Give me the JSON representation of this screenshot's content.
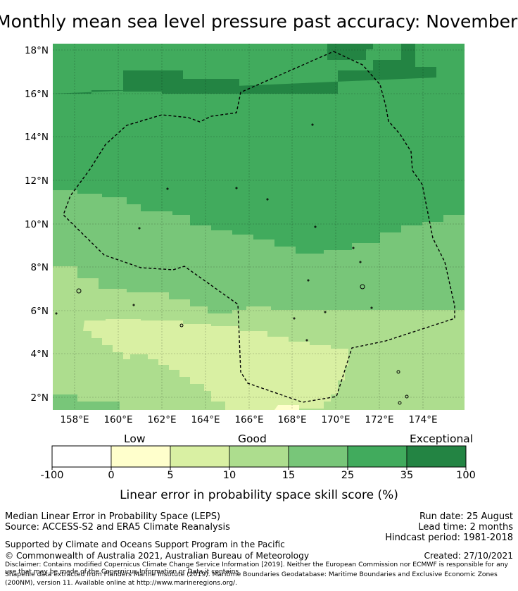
{
  "title": "Monthly mean sea level pressure past accuracy: November",
  "map": {
    "lat_ticks": [
      "18°N",
      "16°N",
      "14°N",
      "12°N",
      "10°N",
      "8°N",
      "6°N",
      "4°N",
      "2°N"
    ],
    "lon_ticks": [
      "158°E",
      "160°E",
      "162°E",
      "164°E",
      "166°E",
      "168°E",
      "170°E",
      "172°E",
      "174°E"
    ],
    "colors": {
      "c0": "#ffffff",
      "c1": "#ffffcc",
      "c2": "#d9f0a3",
      "c3": "#addd8e",
      "c4": "#78c679",
      "c5": "#41ab5d",
      "c6": "#238443"
    },
    "boundary_style": "dashed black line"
  },
  "colorbar": {
    "category_labels": [
      "Low",
      "Good",
      "Exceptional"
    ],
    "ticks": [
      "-100",
      "0",
      "5",
      "10",
      "15",
      "25",
      "35",
      "100"
    ],
    "label": "Linear error in probability space skill score (%)"
  },
  "footer": {
    "left_line1": "Median Linear Error in Probability Space (LEPS)",
    "left_line2": "Source: ACCESS-S2 and ERA5 Climate Reanalysis",
    "right_line1": "Run date: 25 August",
    "right_line2": "Lead time: 2 months",
    "right_line3": "Hindcast period: 1981-2018",
    "support": "Supported by Climate and Oceans Support Program in the Pacific",
    "copyright": "© Commonwealth of Australia 2021, Australian Bureau of Meteorology",
    "created": "Created: 27/10/2021",
    "disclaimer1": "Disclaimer: Contains modified Copernicus Climate Change Service Information [2019]. Neither the European Commission nor ECMWF is responsible for any",
    "disclaimer2": "use that may be made of the Copernicus Information or Data it contains.",
    "shapefile1": "Shapefile data extracted from Flanders Marine Institute (2019). Maritime Boundaries Geodatabase: Maritime Boundaries and Exclusive Economic Zones",
    "shapefile2": "(200NM), version 11. Available online at http://www.marineregions.org/."
  }
}
